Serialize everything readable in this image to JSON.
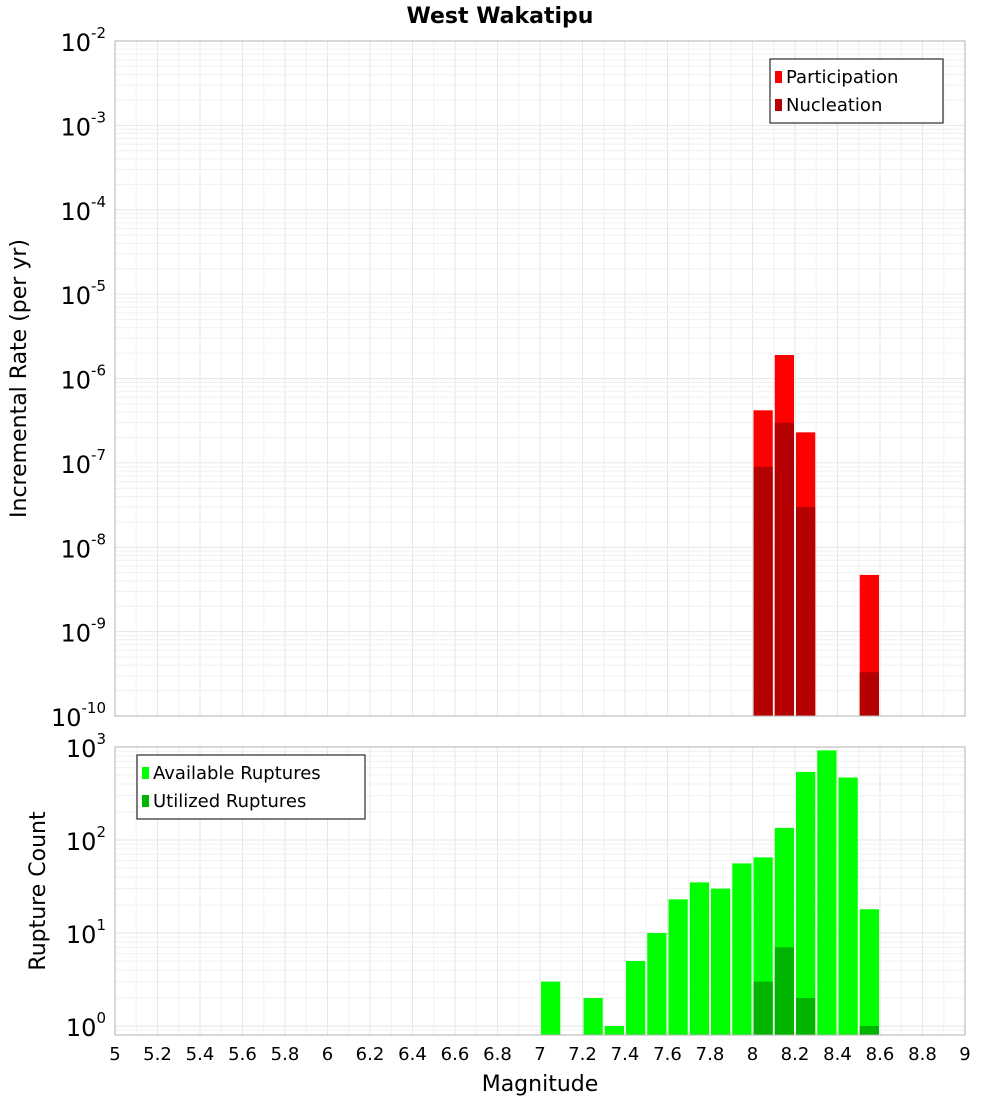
{
  "chart_data": [
    {
      "type": "bar",
      "title": "West Wakatipu",
      "xlabel": "Magnitude",
      "ylabel": "Incremental Rate (per yr)",
      "yscale": "log",
      "ylim": [
        1e-10,
        0.01
      ],
      "xlim": [
        5,
        9
      ],
      "bin_width": 0.1,
      "legend_position": "top-right",
      "series": [
        {
          "name": "Participation",
          "color": "#ff0000",
          "x": [
            8.05,
            8.15,
            8.25,
            8.55
          ],
          "values": [
            4.2e-07,
            1.9e-06,
            2.3e-07,
            4.7e-09
          ]
        },
        {
          "name": "Nucleation",
          "color": "#b40000",
          "x": [
            8.05,
            8.15,
            8.25,
            8.55
          ],
          "values": [
            9e-08,
            3e-07,
            3e-08,
            3.3e-10
          ]
        }
      ]
    },
    {
      "type": "bar",
      "title": "",
      "xlabel": "Magnitude",
      "ylabel": "Rupture Count",
      "yscale": "log",
      "ylim": [
        0.8,
        1000
      ],
      "xlim": [
        5,
        9
      ],
      "bin_width": 0.1,
      "legend_position": "top-left",
      "x_ticks": [
        "5",
        "5.2",
        "5.4",
        "5.6",
        "5.8",
        "6",
        "6.2",
        "6.4",
        "6.6",
        "6.8",
        "7",
        "7.2",
        "7.4",
        "7.6",
        "7.8",
        "8",
        "8.2",
        "8.4",
        "8.6",
        "8.8",
        "9"
      ],
      "series": [
        {
          "name": "Available Ruptures",
          "color": "#00ff00",
          "x": [
            7.05,
            7.25,
            7.35,
            7.45,
            7.55,
            7.65,
            7.75,
            7.85,
            7.95,
            8.05,
            8.15,
            8.25,
            8.35,
            8.45,
            8.55
          ],
          "values": [
            3,
            2,
            1,
            5,
            10,
            23,
            35,
            30,
            56,
            65,
            135,
            540,
            920,
            470,
            18
          ]
        },
        {
          "name": "Utilized Ruptures",
          "color": "#00b400",
          "x": [
            8.05,
            8.15,
            8.25,
            8.55
          ],
          "values": [
            3,
            7,
            2,
            1
          ]
        }
      ]
    }
  ]
}
